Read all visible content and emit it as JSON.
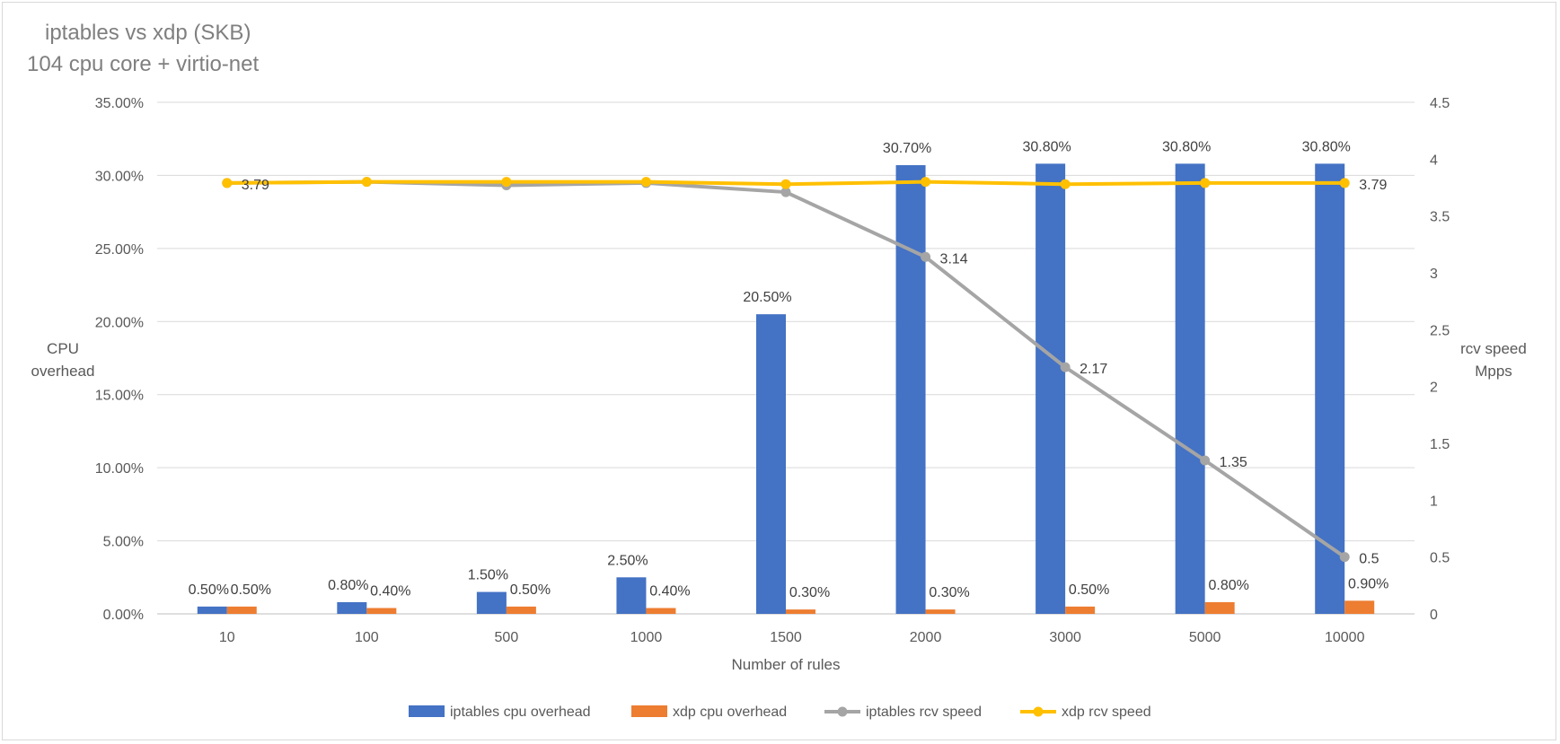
{
  "chart_data": {
    "type": "bar+line",
    "title_lines": [
      "iptables vs xdp (SKB)",
      "104 cpu core + virtio-net"
    ],
    "categories": [
      "10",
      "100",
      "500",
      "1000",
      "1500",
      "2000",
      "3000",
      "5000",
      "10000"
    ],
    "xlabel": "Number of rules",
    "ylabel_left_lines": [
      "CPU",
      "overhead"
    ],
    "ylabel_right_lines": [
      "rcv speed",
      "Mpps"
    ],
    "y_left": {
      "min": 0,
      "max": 0.35,
      "step": 0.05,
      "tick_labels": [
        "0.00%",
        "5.00%",
        "10.00%",
        "15.00%",
        "20.00%",
        "25.00%",
        "30.00%",
        "35.00%"
      ]
    },
    "y_right": {
      "min": 0,
      "max": 4.5,
      "step": 0.5,
      "tick_labels": [
        "0",
        "0.5",
        "1",
        "1.5",
        "2",
        "2.5",
        "3",
        "3.5",
        "4",
        "4.5"
      ]
    },
    "gridlines": true,
    "legend_position": "bottom",
    "series": [
      {
        "name": "iptables cpu overhead",
        "kind": "bar",
        "axis": "left",
        "color": "#4472c4",
        "values": [
          0.005,
          0.008,
          0.015,
          0.025,
          0.205,
          0.307,
          0.308,
          0.308,
          0.308
        ],
        "labels": [
          "0.50%",
          "0.80%",
          "1.50%",
          "2.50%",
          "20.50%",
          "30.70%",
          "30.80%",
          "30.80%",
          "30.80%"
        ]
      },
      {
        "name": "xdp cpu overhead",
        "kind": "bar",
        "axis": "left",
        "color": "#ed7d31",
        "values": [
          0.005,
          0.004,
          0.005,
          0.004,
          0.003,
          0.003,
          0.005,
          0.008,
          0.009
        ],
        "labels": [
          "0.50%",
          "0.40%",
          "0.50%",
          "0.40%",
          "0.30%",
          "0.30%",
          "0.50%",
          "0.80%",
          "0.90%"
        ]
      },
      {
        "name": "iptables rcv speed",
        "kind": "line",
        "axis": "right",
        "color": "#a5a5a5",
        "values": [
          3.79,
          3.8,
          3.77,
          3.79,
          3.71,
          3.14,
          2.17,
          1.35,
          0.5
        ],
        "labels": [
          null,
          null,
          null,
          null,
          null,
          "3.14",
          "2.17",
          "1.35",
          "0.5"
        ]
      },
      {
        "name": "xdp rcv speed",
        "kind": "line",
        "axis": "right",
        "color": "#ffc000",
        "values": [
          3.79,
          3.8,
          3.8,
          3.8,
          3.78,
          3.8,
          3.78,
          3.79,
          3.79
        ],
        "labels": [
          "3.79",
          null,
          null,
          null,
          null,
          null,
          null,
          null,
          "3.79"
        ]
      }
    ]
  }
}
